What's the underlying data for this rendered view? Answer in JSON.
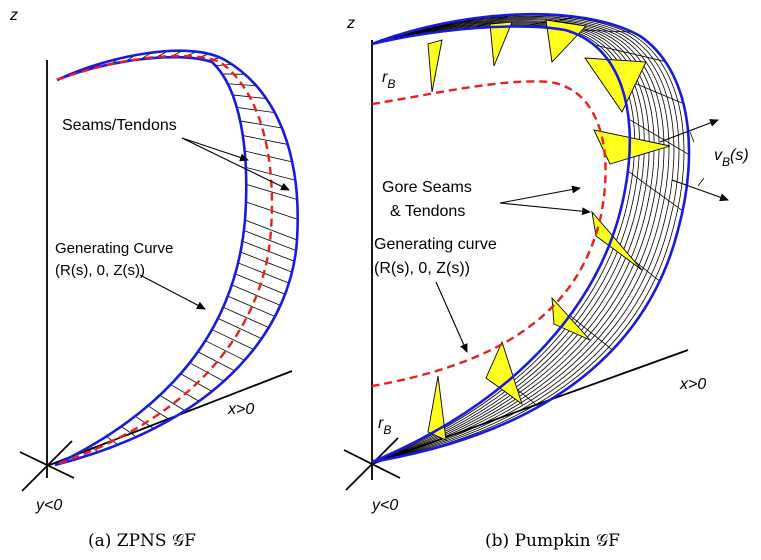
{
  "panel_a": {
    "z_label": "z",
    "x_label": "x>0",
    "y_label": "y<0",
    "seams_label": "Seams/Tendons",
    "curve_label_1": "Generating Curve",
    "curve_label_2": "(R(s), 0, Z(s))",
    "caption": "(a) ZPNS 𝒢F"
  },
  "panel_b": {
    "z_label": "z",
    "x_label": "x>0",
    "y_label": "y<0",
    "rb_top": "r",
    "rb_top_sub": "B",
    "rb_bottom": "r",
    "rb_bottom_sub": "B",
    "vb_label": "v",
    "vb_sub": "B",
    "vb_arg": "(s)",
    "gore_label_1": "Gore Seams",
    "gore_label_2": "& Tendons",
    "curve_label_1": "Generating curve",
    "curve_label_2": "(R(s), 0, Z(s))",
    "caption": "(b)  Pumpkin 𝒢F"
  },
  "colors": {
    "boundary": "#1a1adc",
    "generating_curve": "#e8201c",
    "gore_fill": "#ffff1e"
  }
}
